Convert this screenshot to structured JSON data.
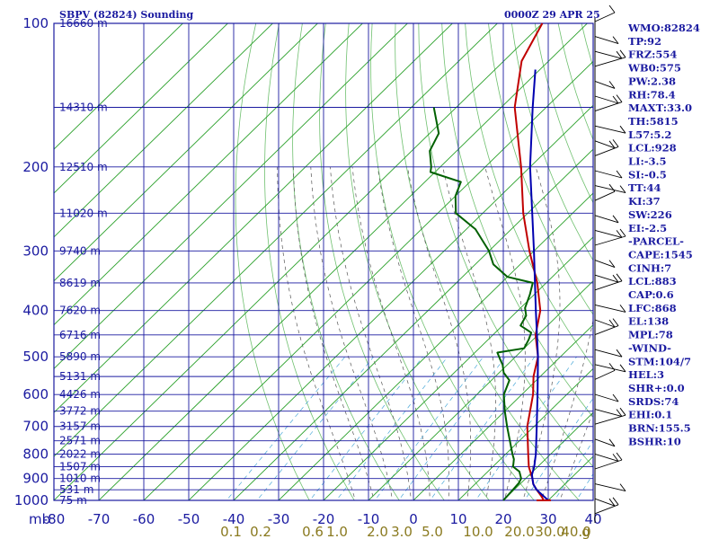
{
  "header": {
    "station": "SBPV (82824) Sounding",
    "datetime": "0000Z 29 APR 25"
  },
  "indices": [
    "WMO:82824",
    "TP:92",
    "FRZ:554",
    "WB0:575",
    "PW:2.38",
    "RH:78.4",
    "MAXT:33.0",
    "TH:5815",
    "L57:5.2",
    "LCL:928",
    "LI:-3.5",
    "SI:-0.5",
    "TT:44",
    "KI:37",
    "SW:226",
    "EI:-2.5",
    "-PARCEL-",
    "CAPE:1545",
    "CINH:7",
    "LCL:883",
    "CAP:0.6",
    "LFC:868",
    "EL:138",
    "MPL:78",
    "-WIND-",
    "STM:104/7",
    "HEL:3",
    "SHR+:0.0",
    "SRDS:74",
    "EHI:0.1",
    "BRN:155.5",
    "BSHR:10"
  ],
  "chart_data": {
    "type": "line",
    "chart_kind": "skew-T log-P sounding",
    "x_unit_label": "mb",
    "xlim": [
      -80,
      40
    ],
    "ylim_mb": [
      1000,
      100
    ],
    "y_scale": "log",
    "x_ticks": [
      "-80",
      "-70",
      "-60",
      "-50",
      "-40",
      "-30",
      "-20",
      "-10",
      "0",
      "10",
      "20",
      "30",
      "40"
    ],
    "y_ticks": [
      {
        "p": 100,
        "label": "100"
      },
      {
        "p": 200,
        "label": "200"
      },
      {
        "p": 300,
        "label": "300"
      },
      {
        "p": 400,
        "label": "400"
      },
      {
        "p": 500,
        "label": "500"
      },
      {
        "p": 600,
        "label": "600"
      },
      {
        "p": 700,
        "label": "700"
      },
      {
        "p": 800,
        "label": "800"
      },
      {
        "p": 900,
        "label": "900"
      },
      {
        "p": 1000,
        "label": "1000"
      }
    ],
    "height_labels": [
      {
        "p": 100,
        "label": "16660 m"
      },
      {
        "p": 150,
        "label": "14310 m"
      },
      {
        "p": 200,
        "label": "12510 m"
      },
      {
        "p": 250,
        "label": "11020 m"
      },
      {
        "p": 300,
        "label": "9740 m"
      },
      {
        "p": 350,
        "label": "8619 m"
      },
      {
        "p": 400,
        "label": "7620 m"
      },
      {
        "p": 450,
        "label": "6716 m"
      },
      {
        "p": 500,
        "label": "5890 m"
      },
      {
        "p": 550,
        "label": "5131 m"
      },
      {
        "p": 600,
        "label": "4426 m"
      },
      {
        "p": 650,
        "label": "3772 m"
      },
      {
        "p": 700,
        "label": "3157 m"
      },
      {
        "p": 750,
        "label": "2571 m"
      },
      {
        "p": 800,
        "label": "2022 m"
      },
      {
        "p": 850,
        "label": "1507 m"
      },
      {
        "p": 900,
        "label": "1010 m"
      },
      {
        "p": 950,
        "label": "531 m"
      },
      {
        "p": 1000,
        "label": "75 m"
      }
    ],
    "mixing_ratio_labels": [
      "0.1",
      "0.2",
      "0.6",
      "1.0",
      "2.0",
      "3.0",
      "5.0",
      "10.0",
      "20.0",
      "30.0",
      "40.0",
      "g"
    ],
    "grid": true,
    "series": [
      {
        "key": "temperature",
        "color": "#c00000",
        "points": [
          [
            1000,
            29
          ],
          [
            980,
            27.5
          ],
          [
            950,
            25
          ],
          [
            925,
            23
          ],
          [
            900,
            21.5
          ],
          [
            850,
            18
          ],
          [
            800,
            15
          ],
          [
            700,
            8.5
          ],
          [
            600,
            2.5
          ],
          [
            550,
            -1.5
          ],
          [
            500,
            -5
          ],
          [
            450,
            -10.5
          ],
          [
            400,
            -15
          ],
          [
            350,
            -22
          ],
          [
            300,
            -31
          ],
          [
            250,
            -41
          ],
          [
            200,
            -52
          ],
          [
            150,
            -67
          ],
          [
            120,
            -76
          ],
          [
            100,
            -80
          ]
        ]
      },
      {
        "key": "dewpoint",
        "color": "#006000",
        "points": [
          [
            1000,
            20
          ],
          [
            960,
            19.8
          ],
          [
            920,
            19.5
          ],
          [
            900,
            19
          ],
          [
            870,
            17
          ],
          [
            850,
            14.5
          ],
          [
            820,
            13
          ],
          [
            800,
            11.5
          ],
          [
            700,
            4
          ],
          [
            650,
            0
          ],
          [
            600,
            -4
          ],
          [
            560,
            -6
          ],
          [
            540,
            -9
          ],
          [
            520,
            -11
          ],
          [
            505,
            -13
          ],
          [
            490,
            -15
          ],
          [
            480,
            -10
          ],
          [
            460,
            -11
          ],
          [
            445,
            -12
          ],
          [
            430,
            -16
          ],
          [
            410,
            -17
          ],
          [
            395,
            -19
          ],
          [
            370,
            -21
          ],
          [
            350,
            -23
          ],
          [
            340,
            -30
          ],
          [
            320,
            -36
          ],
          [
            300,
            -40
          ],
          [
            270,
            -48
          ],
          [
            250,
            -56
          ],
          [
            230,
            -60
          ],
          [
            215,
            -62
          ],
          [
            205,
            -71
          ],
          [
            200,
            -72
          ],
          [
            185,
            -76
          ],
          [
            170,
            -78
          ],
          [
            150,
            -85
          ]
        ]
      },
      {
        "key": "parcel",
        "color": "#0000b0",
        "points": [
          [
            1000,
            30
          ],
          [
            980,
            28
          ],
          [
            950,
            25
          ],
          [
            925,
            23
          ],
          [
            900,
            21.5
          ],
          [
            883,
            20.5
          ],
          [
            850,
            19.2
          ],
          [
            800,
            16.7
          ],
          [
            700,
            10.6
          ],
          [
            600,
            3.5
          ],
          [
            500,
            -5
          ],
          [
            400,
            -16
          ],
          [
            300,
            -30
          ],
          [
            250,
            -39
          ],
          [
            200,
            -50
          ],
          [
            150,
            -63
          ],
          [
            125,
            -71
          ]
        ]
      }
    ]
  }
}
